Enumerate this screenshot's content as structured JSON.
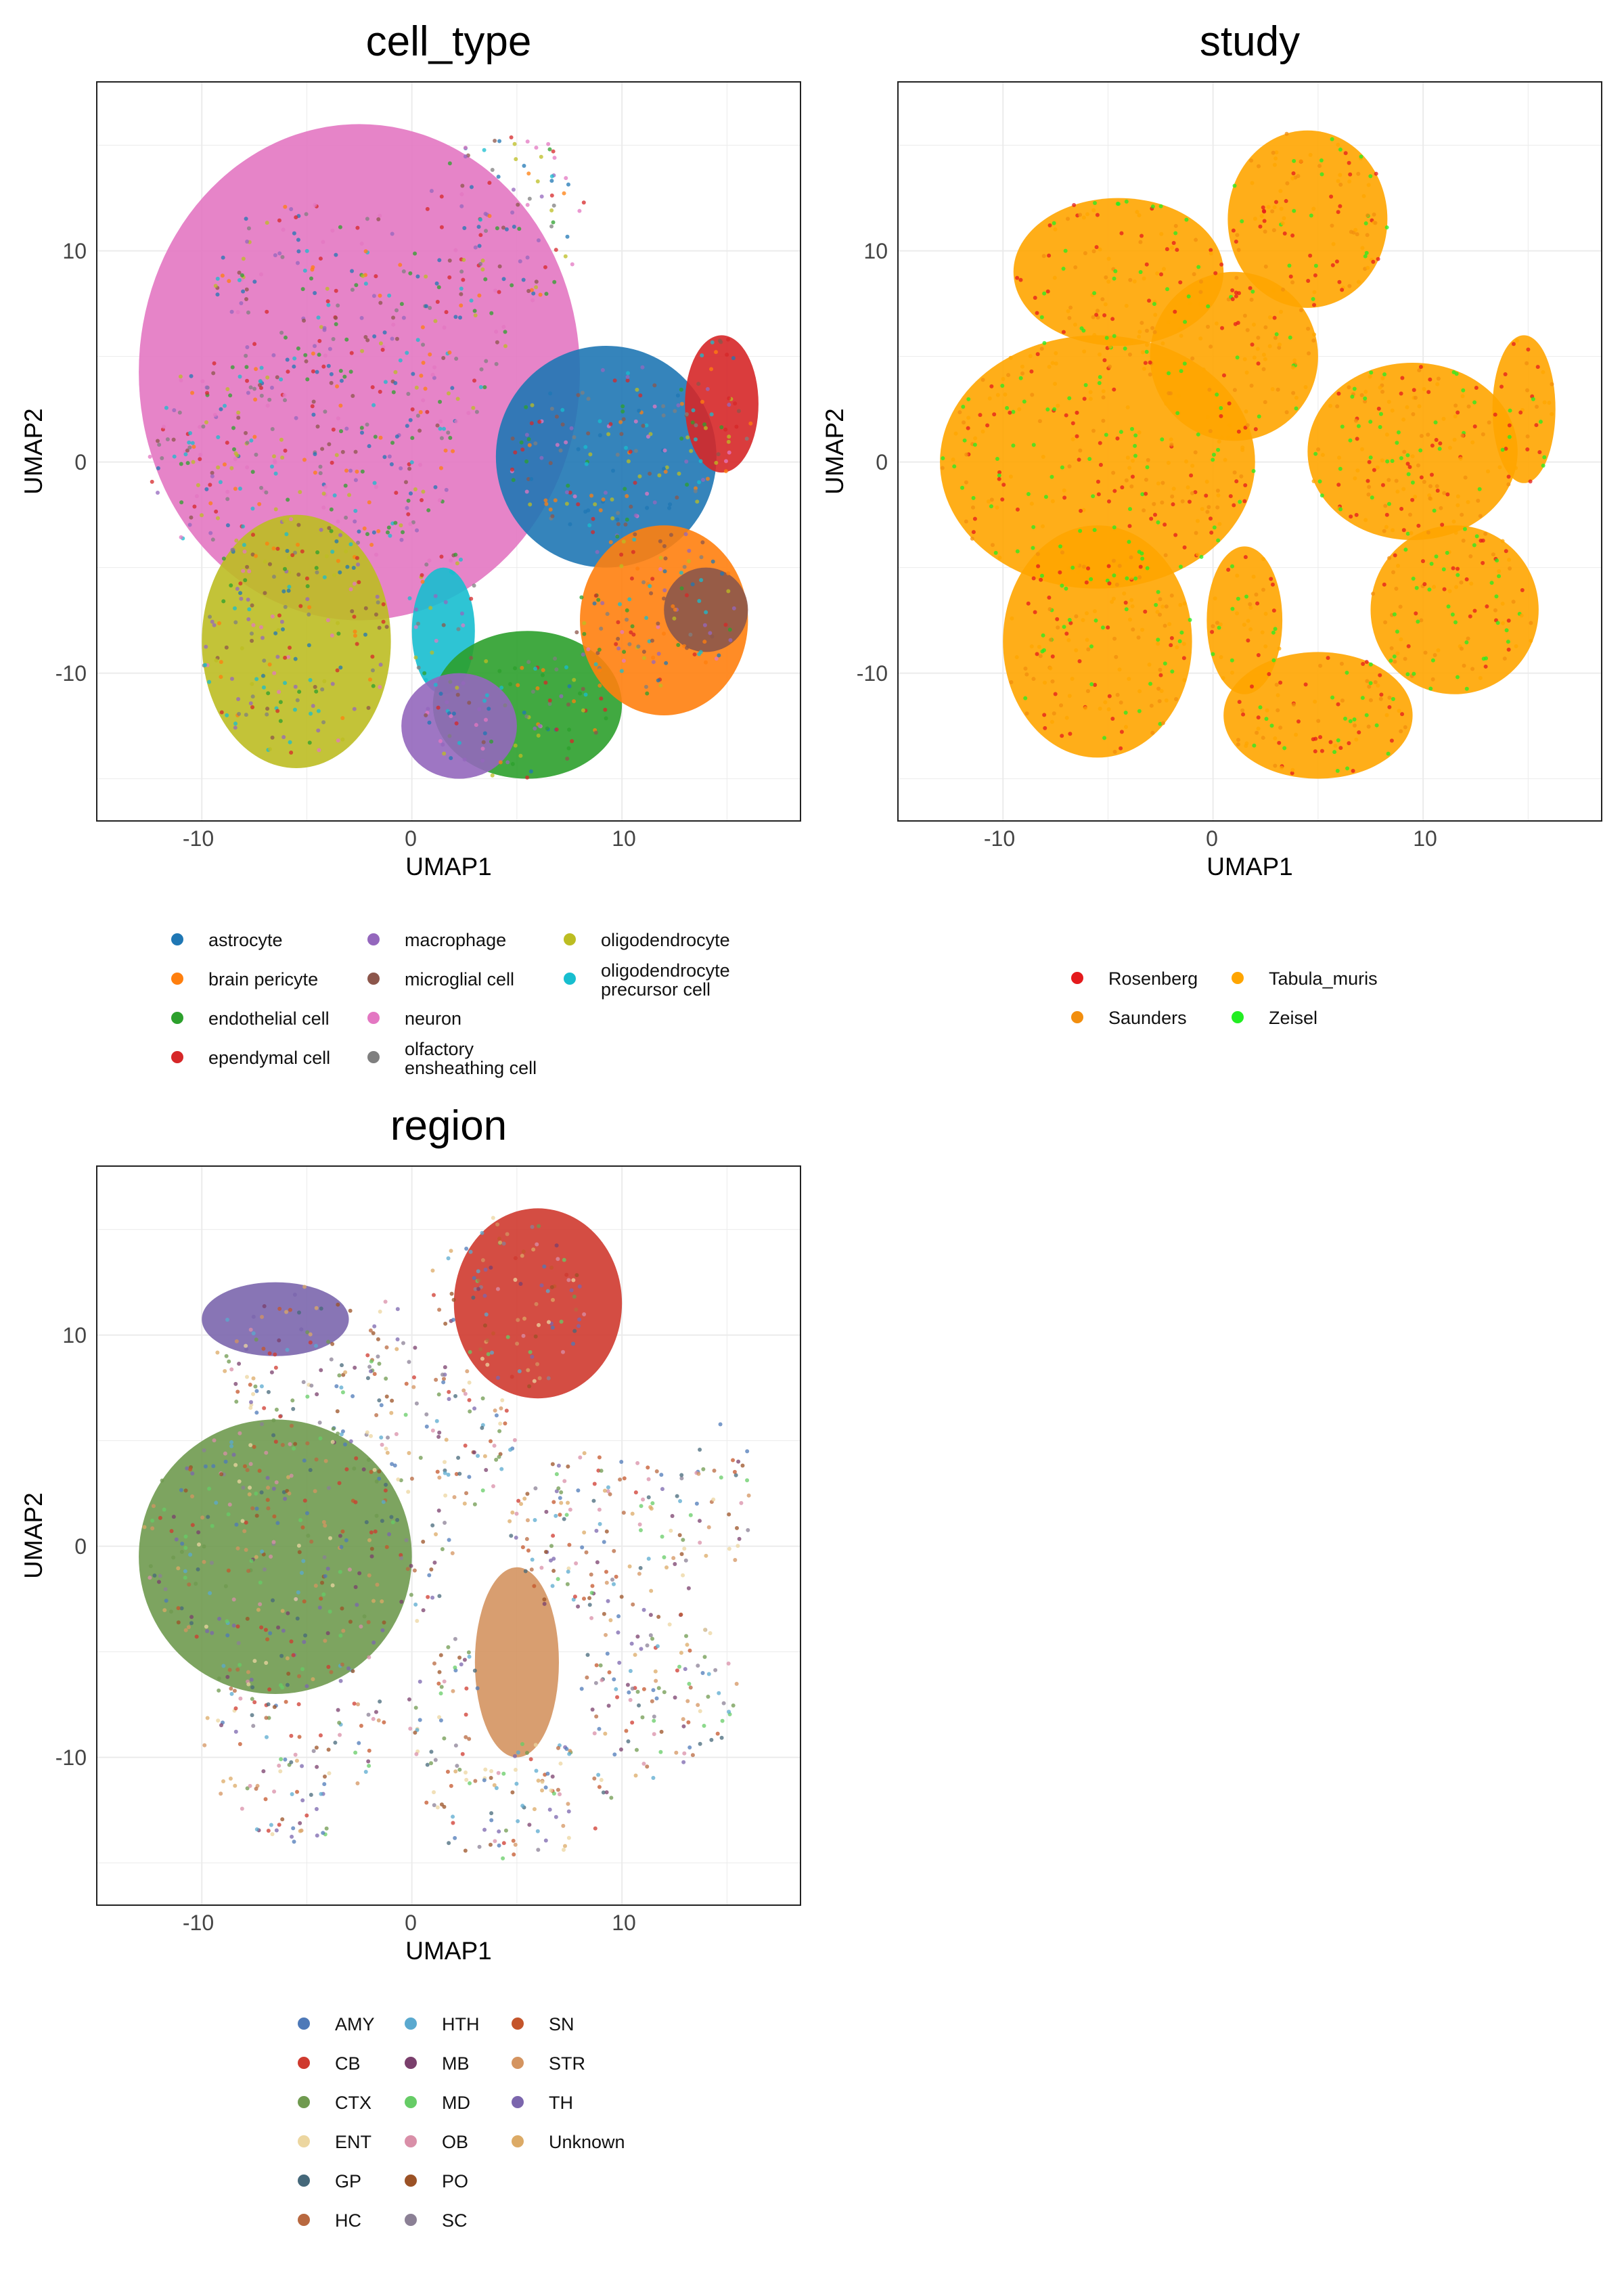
{
  "chart_data": [
    {
      "type": "scatter",
      "title": "cell_type",
      "xlabel": "UMAP1",
      "ylabel": "UMAP2",
      "xlim": [
        -15,
        18.5
      ],
      "ylim": [
        -17,
        18
      ],
      "xticks": [
        -10,
        0,
        10
      ],
      "yticks": [
        -10,
        0,
        10
      ],
      "grid": true,
      "legend_position": "bottom",
      "legend_columns": 3,
      "legend": [
        {
          "label": "astrocyte",
          "color": "#1f77b4"
        },
        {
          "label": "brain pericyte",
          "color": "#ff7f0e"
        },
        {
          "label": "endothelial cell",
          "color": "#2ca02c"
        },
        {
          "label": "ependymal cell",
          "color": "#d62728"
        },
        {
          "label": "macrophage",
          "color": "#9467bd"
        },
        {
          "label": "microglial cell",
          "color": "#8c564b"
        },
        {
          "label": "neuron",
          "color": "#e377c2"
        },
        {
          "label": "olfactory\nensheathing cell",
          "color": "#7f7f7f"
        },
        {
          "label": "oligodendrocyte",
          "color": "#bcbd22"
        },
        {
          "label": "oligodendrocyte\nprecursor cell",
          "color": "#17becf"
        }
      ],
      "clusters": [
        {
          "category": "neuron",
          "x": [
            -13,
            8
          ],
          "y": [
            -7.5,
            16
          ]
        },
        {
          "category": "astrocyte",
          "x": [
            4,
            14.5
          ],
          "y": [
            -5,
            5.5
          ]
        },
        {
          "category": "oligodendrocyte",
          "x": [
            -10,
            -1
          ],
          "y": [
            -14.5,
            -2.5
          ]
        },
        {
          "category": "oligodendrocyte precursor cell",
          "x": [
            0,
            3
          ],
          "y": [
            -11,
            -5
          ]
        },
        {
          "category": "endothelial cell",
          "x": [
            1,
            10
          ],
          "y": [
            -15,
            -8
          ]
        },
        {
          "category": "brain pericyte",
          "x": [
            8,
            16
          ],
          "y": [
            -12,
            -3
          ]
        },
        {
          "category": "microglial cell",
          "x": [
            12,
            16
          ],
          "y": [
            -9,
            -5
          ]
        },
        {
          "category": "ependymal cell",
          "x": [
            13,
            16.5
          ],
          "y": [
            -0.5,
            6
          ]
        },
        {
          "category": "macrophage",
          "x": [
            -0.5,
            5
          ],
          "y": [
            -15,
            -10
          ]
        }
      ]
    },
    {
      "type": "scatter",
      "title": "study",
      "xlabel": "UMAP1",
      "ylabel": "UMAP2",
      "xlim": [
        -15,
        18.5
      ],
      "ylim": [
        -17,
        18
      ],
      "xticks": [
        -10,
        0,
        10
      ],
      "yticks": [
        -10,
        0,
        10
      ],
      "grid": true,
      "legend_position": "bottom",
      "legend_columns": 2,
      "legend": [
        {
          "label": "Rosenberg",
          "color": "#e41a1c"
        },
        {
          "label": "Saunders",
          "color": "#f28e0e"
        },
        {
          "label": "Tabula_muris",
          "color": "#ffa500"
        },
        {
          "label": "Zeisel",
          "color": "#22ee22"
        }
      ]
    },
    {
      "type": "scatter",
      "title": "region",
      "xlabel": "UMAP1",
      "ylabel": "UMAP2",
      "xlim": [
        -15,
        18.5
      ],
      "ylim": [
        -17,
        18
      ],
      "xticks": [
        -10,
        0,
        10
      ],
      "yticks": [
        -10,
        0,
        10
      ],
      "grid": true,
      "legend_position": "bottom",
      "legend_columns": 3,
      "legend": [
        {
          "label": "AMY",
          "color": "#4e79b8"
        },
        {
          "label": "CB",
          "color": "#cf3a2f"
        },
        {
          "label": "CTX",
          "color": "#6f9a4f"
        },
        {
          "label": "ENT",
          "color": "#ecd6a0"
        },
        {
          "label": "GP",
          "color": "#45687a"
        },
        {
          "label": "HC",
          "color": "#b8683f"
        },
        {
          "label": "HTH",
          "color": "#5aa9cf"
        },
        {
          "label": "MB",
          "color": "#7a3f6c"
        },
        {
          "label": "MD",
          "color": "#66cc66"
        },
        {
          "label": "OB",
          "color": "#d98fa8"
        },
        {
          "label": "PO",
          "color": "#9b5226"
        },
        {
          "label": "SC",
          "color": "#8b8095"
        },
        {
          "label": "SN",
          "color": "#c4552b"
        },
        {
          "label": "STR",
          "color": "#d49460"
        },
        {
          "label": "TH",
          "color": "#7b66ad"
        },
        {
          "label": "Unknown",
          "color": "#dcaa66"
        }
      ],
      "clusters": [
        {
          "category": "CB",
          "x": [
            2,
            10
          ],
          "y": [
            7,
            16
          ]
        },
        {
          "category": "TH",
          "x": [
            -10,
            -3
          ],
          "y": [
            9,
            12.5
          ]
        },
        {
          "category": "CTX",
          "x": [
            -13,
            0
          ],
          "y": [
            -7,
            6
          ]
        },
        {
          "category": "STR",
          "x": [
            3,
            7
          ],
          "y": [
            -10,
            -1
          ]
        }
      ]
    }
  ]
}
